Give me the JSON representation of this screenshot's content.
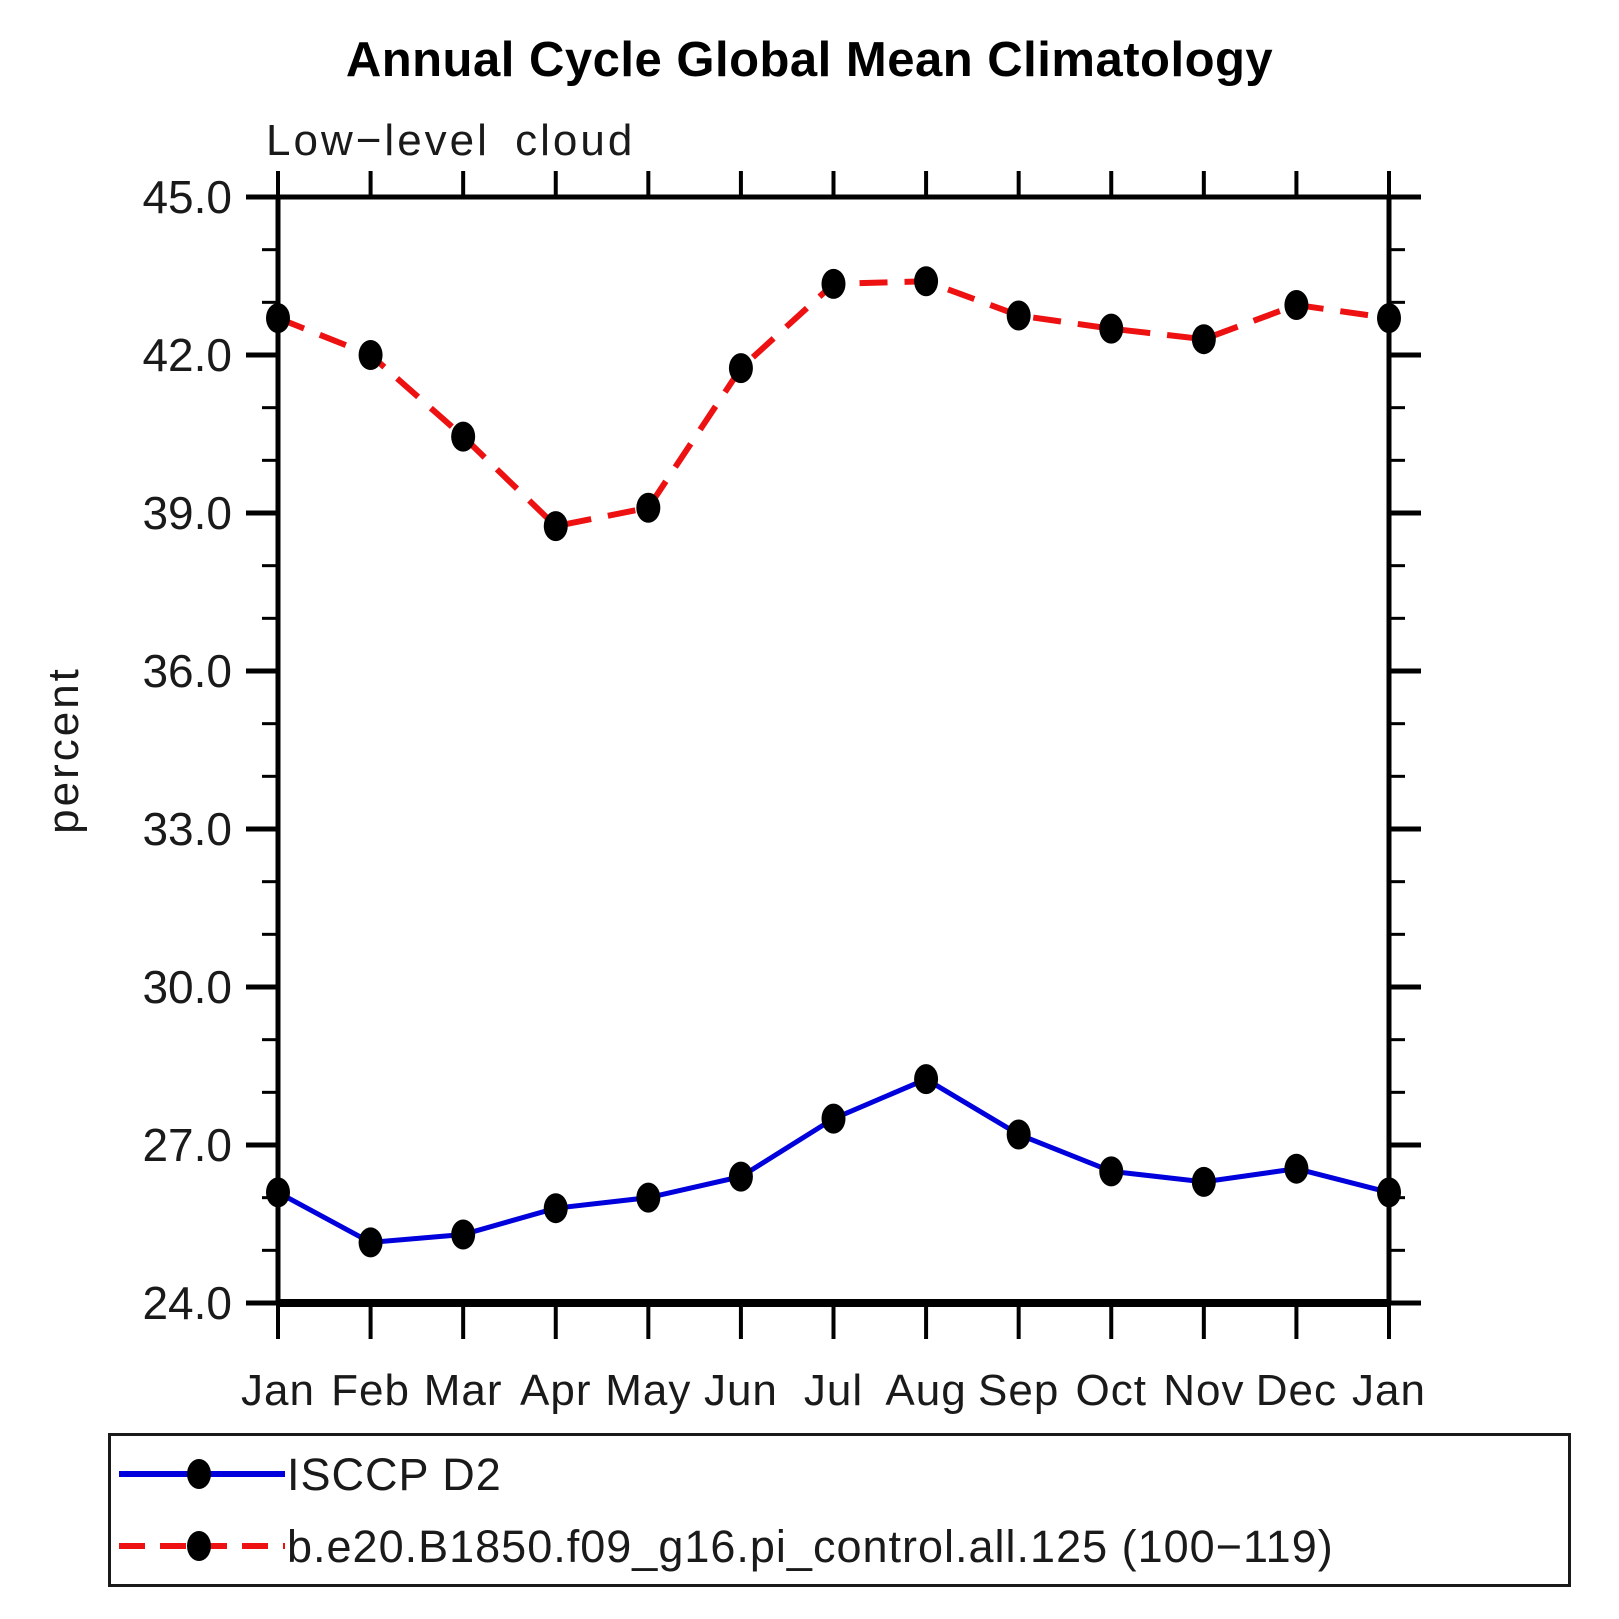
{
  "chart_data": {
    "type": "line",
    "title": "Annual Cycle Global Mean Climatology",
    "subtitle": "Low−level cloud",
    "ylabel": "percent",
    "xlabel": "",
    "categories": [
      "Jan",
      "Feb",
      "Mar",
      "Apr",
      "May",
      "Jun",
      "Jul",
      "Aug",
      "Sep",
      "Oct",
      "Nov",
      "Dec",
      "Jan"
    ],
    "ylim": [
      24.0,
      45.0
    ],
    "ytick_major_interval": 3.0,
    "ytick_minor_interval": 1.0,
    "ytick_labels": [
      "24.0",
      "27.0",
      "30.0",
      "33.0",
      "36.0",
      "39.0",
      "42.0",
      "45.0"
    ],
    "grid": false,
    "legend_position": "bottom",
    "marker": {
      "shape": "filled-circle",
      "color": "#000000",
      "radius": 13
    },
    "series": [
      {
        "name": "ISCCP D2",
        "color": "#0000dd",
        "line_style": "solid",
        "values": [
          26.1,
          25.15,
          25.3,
          25.8,
          26.0,
          26.4,
          27.5,
          28.25,
          27.2,
          26.5,
          26.3,
          26.55,
          26.1
        ]
      },
      {
        "name": "b.e20.B1850.f09_g16.pi_control.all.125 (100−119)",
        "color": "#ee1111",
        "line_style": "dashed",
        "values": [
          42.7,
          42.0,
          40.45,
          38.75,
          39.1,
          41.75,
          43.35,
          43.4,
          42.75,
          42.5,
          42.3,
          42.95,
          42.7
        ]
      }
    ]
  }
}
